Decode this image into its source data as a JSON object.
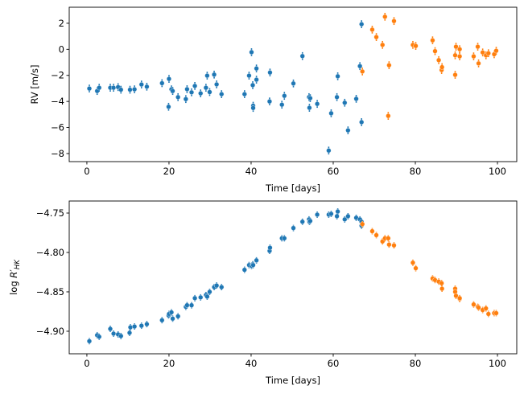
{
  "colors": {
    "series_a": "#1f77b4",
    "series_b": "#ff7f0e",
    "axis": "#000000"
  },
  "chart_data": [
    {
      "type": "scatter",
      "title": "",
      "xlabel": "Time [days]",
      "ylabel": "RV [m/s]",
      "xlim": [
        -4.3,
        104.7
      ],
      "ylim": [
        -8.62,
        3.23
      ],
      "xticks": [
        0,
        20,
        40,
        60,
        80,
        100
      ],
      "xtick_labels": [
        "0",
        "20",
        "40",
        "60",
        "80",
        "100"
      ],
      "yticks": [
        -8,
        -6,
        -4,
        -2,
        0,
        2
      ],
      "ytick_labels": [
        "−8",
        "−6",
        "−4",
        "−2",
        "0",
        "2"
      ],
      "grid": false,
      "series": [
        {
          "name": "blue",
          "color": "#1f77b4",
          "err": 0.3,
          "x": [
            0.6,
            2.5,
            3.0,
            5.7,
            6.5,
            7.6,
            8.3,
            10.5,
            11.6,
            13.3,
            14.6,
            18.3,
            20.0,
            19.9,
            20.6,
            20.9,
            22.2,
            24.1,
            24.4,
            25.5,
            26.3,
            27.7,
            29.0,
            29.3,
            29.9,
            31.0,
            31.6,
            32.8,
            38.4,
            39.5,
            40.1,
            40.4,
            40.5,
            40.5,
            41.3,
            41.3,
            44.6,
            44.5,
            47.5,
            48.1,
            50.3,
            52.5,
            54.1,
            54.4,
            54.2,
            56.1,
            58.9,
            59.5,
            61.1,
            60.9,
            62.8,
            63.6,
            65.6,
            66.5,
            66.9,
            66.9
          ],
          "y": [
            -3.01,
            -3.2,
            -2.95,
            -2.95,
            -2.95,
            -2.9,
            -3.1,
            -3.1,
            -3.07,
            -2.7,
            -2.87,
            -2.6,
            -2.27,
            -4.41,
            -3.07,
            -3.2,
            -3.67,
            -3.82,
            -3.06,
            -3.3,
            -2.81,
            -3.38,
            -2.95,
            -2.02,
            -3.28,
            -1.94,
            -2.69,
            -3.44,
            -3.44,
            -2.02,
            -0.22,
            -2.75,
            -4.33,
            -4.5,
            -1.47,
            -2.33,
            -1.78,
            -4.0,
            -4.25,
            -3.57,
            -2.62,
            -0.52,
            -3.67,
            -3.75,
            -4.49,
            -4.19,
            -7.77,
            -4.91,
            -2.07,
            -3.67,
            -4.1,
            -6.22,
            -3.8,
            -1.29,
            1.93,
            -5.59
          ]
        },
        {
          "name": "orange",
          "color": "#ff7f0e",
          "err": 0.3,
          "x": [
            67.1,
            69.5,
            70.5,
            72.0,
            72.6,
            73.6,
            73.4,
            74.8,
            79.4,
            80.1,
            84.2,
            84.8,
            85.7,
            86.4,
            86.5,
            89.7,
            89.7,
            89.9,
            90.8,
            90.8,
            94.2,
            95.2,
            95.4,
            96.4,
            97.2,
            97.8,
            99.2,
            99.7
          ],
          "y": [
            -1.7,
            1.51,
            0.94,
            0.34,
            2.5,
            -1.22,
            -5.11,
            2.17,
            0.34,
            0.26,
            0.69,
            -0.14,
            -0.83,
            -1.59,
            -1.37,
            -1.96,
            -0.46,
            0.2,
            -0.54,
            0.01,
            -0.54,
            0.2,
            -1.08,
            -0.24,
            -0.46,
            -0.3,
            -0.38,
            -0.11
          ]
        }
      ]
    },
    {
      "type": "scatter",
      "title": "",
      "xlabel": "Time [days]",
      "ylabel": {
        "prefix": "log ",
        "symbol": "R",
        "prime": "′",
        "subscript": "HK"
      },
      "xlim": [
        -4.3,
        104.7
      ],
      "ylim": [
        -4.9286,
        -4.7347
      ],
      "xticks": [
        0,
        20,
        40,
        60,
        80,
        100
      ],
      "xtick_labels": [
        "0",
        "20",
        "40",
        "60",
        "80",
        "100"
      ],
      "yticks": [
        -4.9,
        -4.85,
        -4.8,
        -4.75
      ],
      "ytick_labels": [
        "−4.90",
        "−4.85",
        "−4.80",
        "−4.75"
      ],
      "grid": false,
      "series": [
        {
          "name": "blue",
          "color": "#1f77b4",
          "err": 0.004,
          "x": [
            0.6,
            2.5,
            3.0,
            5.7,
            6.5,
            7.6,
            8.3,
            10.4,
            10.6,
            11.6,
            13.3,
            14.6,
            18.3,
            19.9,
            20.0,
            20.6,
            20.9,
            22.2,
            24.1,
            24.4,
            25.5,
            26.3,
            27.7,
            29.0,
            29.3,
            29.9,
            31.0,
            31.6,
            32.8,
            38.4,
            39.5,
            40.1,
            40.4,
            40.5,
            41.3,
            44.5,
            44.6,
            47.5,
            48.1,
            50.3,
            52.5,
            54.1,
            54.2,
            54.4,
            56.1,
            58.9,
            59.5,
            60.9,
            61.1,
            62.8,
            63.6,
            65.6,
            66.5,
            66.9,
            66.9
          ],
          "y": [
            -4.9126,
            -4.905,
            -4.907,
            -4.897,
            -4.903,
            -4.904,
            -4.906,
            -4.902,
            -4.895,
            -4.894,
            -4.893,
            -4.891,
            -4.886,
            -4.88,
            -4.878,
            -4.876,
            -4.884,
            -4.881,
            -4.869,
            -4.867,
            -4.867,
            -4.858,
            -4.857,
            -4.854,
            -4.856,
            -4.85,
            -4.844,
            -4.842,
            -4.844,
            -4.822,
            -4.816,
            -4.817,
            -4.815,
            -4.816,
            -4.81,
            -4.798,
            -4.794,
            -4.782,
            -4.782,
            -4.769,
            -4.761,
            -4.758,
            -4.761,
            -4.76,
            -4.752,
            -4.752,
            -4.751,
            -4.754,
            -4.748,
            -4.758,
            -4.754,
            -4.756,
            -4.758,
            -4.761,
            -4.766
          ]
        },
        {
          "name": "orange",
          "color": "#ff7f0e",
          "err": 0.004,
          "x": [
            67.1,
            69.5,
            70.5,
            72.0,
            72.6,
            73.4,
            73.6,
            74.8,
            79.4,
            80.1,
            84.2,
            84.8,
            85.7,
            86.4,
            86.5,
            89.7,
            89.7,
            89.9,
            90.8,
            90.8,
            94.2,
            95.2,
            95.4,
            96.4,
            97.2,
            97.8,
            99.2,
            99.7
          ],
          "y": [
            -4.764,
            -4.773,
            -4.778,
            -4.786,
            -4.782,
            -4.782,
            -4.79,
            -4.791,
            -4.813,
            -4.82,
            -4.833,
            -4.835,
            -4.837,
            -4.839,
            -4.846,
            -4.846,
            -4.85,
            -4.855,
            -4.859,
            -4.858,
            -4.866,
            -4.869,
            -4.87,
            -4.873,
            -4.871,
            -4.878,
            -4.877,
            -4.877
          ]
        }
      ]
    }
  ]
}
